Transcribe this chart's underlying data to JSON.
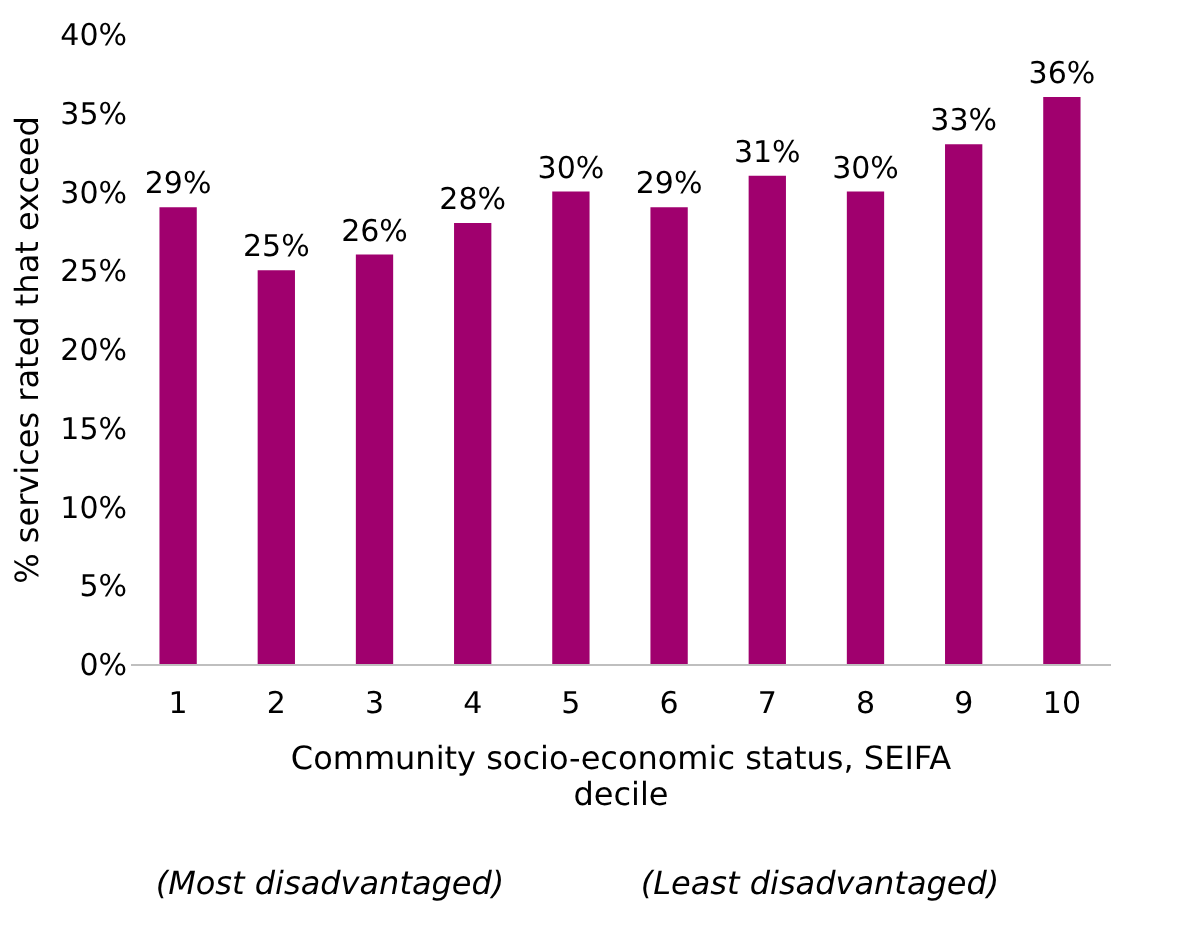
{
  "chart_data": {
    "type": "bar",
    "categories": [
      "1",
      "2",
      "3",
      "4",
      "5",
      "6",
      "7",
      "8",
      "9",
      "10"
    ],
    "values": [
      29,
      25,
      26,
      28,
      30,
      29,
      31,
      30,
      33,
      36
    ],
    "value_labels": [
      "29%",
      "25%",
      "26%",
      "28%",
      "30%",
      "29%",
      "31%",
      "30%",
      "33%",
      "36%"
    ],
    "color": "#a0006e",
    "xlabel": "Community socio-economic status, SEIFA decile",
    "ylabel": "% services rated that exceed",
    "ylim": [
      0,
      40
    ],
    "yticks": [
      {
        "value": 0,
        "label": "0%"
      },
      {
        "value": 5,
        "label": "5%"
      },
      {
        "value": 10,
        "label": "10%"
      },
      {
        "value": 15,
        "label": "15%"
      },
      {
        "value": 20,
        "label": "20%"
      },
      {
        "value": 25,
        "label": "25%"
      },
      {
        "value": 30,
        "label": "30%"
      },
      {
        "value": 35,
        "label": "35%"
      },
      {
        "value": 40,
        "label": "40%"
      }
    ],
    "annotations": [
      "(Most disadvantaged)",
      "(Least disadvantaged)"
    ],
    "grid": false
  }
}
